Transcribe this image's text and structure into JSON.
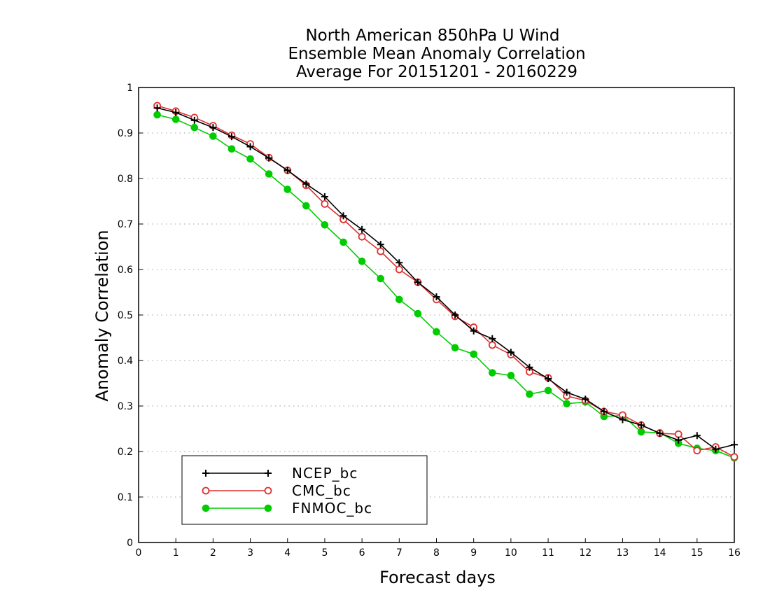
{
  "chart_data": {
    "type": "line",
    "title": [
      "North American 850hPa U Wind",
      "Ensemble Mean Anomaly Correlation",
      "Average For 20151201 - 20160229"
    ],
    "xlabel": "Forecast days",
    "ylabel": "Anomaly Correlation",
    "xlim": [
      0,
      16
    ],
    "ylim": [
      0,
      1
    ],
    "xticks": [
      "0",
      "1",
      "2",
      "3",
      "4",
      "5",
      "6",
      "7",
      "8",
      "9",
      "10",
      "11",
      "12",
      "13",
      "14",
      "15",
      "16"
    ],
    "yticks": [
      "0",
      "0.1",
      "0.2",
      "0.3",
      "0.4",
      "0.5",
      "0.6",
      "0.7",
      "0.8",
      "0.9",
      "1"
    ],
    "grid": true,
    "legend_position": "bottom-left",
    "x": [
      0.5,
      1,
      1.5,
      2,
      2.5,
      3,
      3.5,
      4,
      4.5,
      5,
      5.5,
      6,
      6.5,
      7,
      7.5,
      8,
      8.5,
      9,
      9.5,
      10,
      10.5,
      11,
      11.5,
      12,
      12.5,
      13,
      13.5,
      14,
      14.5,
      15,
      15.5,
      16
    ],
    "series": [
      {
        "name": "NCEP_bc",
        "color": "#000000",
        "marker": "plus",
        "values": [
          0.955,
          0.945,
          0.928,
          0.912,
          0.892,
          0.87,
          0.845,
          0.818,
          0.788,
          0.76,
          0.718,
          0.688,
          0.655,
          0.615,
          0.572,
          0.54,
          0.5,
          0.465,
          0.448,
          0.418,
          0.385,
          0.36,
          0.33,
          0.315,
          0.288,
          0.27,
          0.258,
          0.24,
          0.225,
          0.235,
          0.205,
          0.215
        ]
      },
      {
        "name": "CMC_bc",
        "color": "#e03030",
        "marker": "open-circle",
        "values": [
          0.96,
          0.948,
          0.934,
          0.916,
          0.895,
          0.876,
          0.846,
          0.818,
          0.785,
          0.744,
          0.71,
          0.672,
          0.64,
          0.6,
          0.572,
          0.534,
          0.497,
          0.473,
          0.434,
          0.413,
          0.375,
          0.362,
          0.322,
          0.312,
          0.288,
          0.28,
          0.258,
          0.24,
          0.238,
          0.202,
          0.21,
          0.188
        ]
      },
      {
        "name": "FNMOC_bc",
        "color": "#00cc00",
        "marker": "filled-circle",
        "values": [
          0.94,
          0.93,
          0.912,
          0.893,
          0.865,
          0.843,
          0.81,
          0.776,
          0.74,
          0.698,
          0.66,
          0.618,
          0.58,
          0.534,
          0.503,
          0.463,
          0.428,
          0.414,
          0.373,
          0.367,
          0.326,
          0.334,
          0.305,
          0.309,
          0.277,
          0.279,
          0.243,
          0.241,
          0.218,
          0.207,
          0.202,
          0.186
        ]
      }
    ]
  }
}
